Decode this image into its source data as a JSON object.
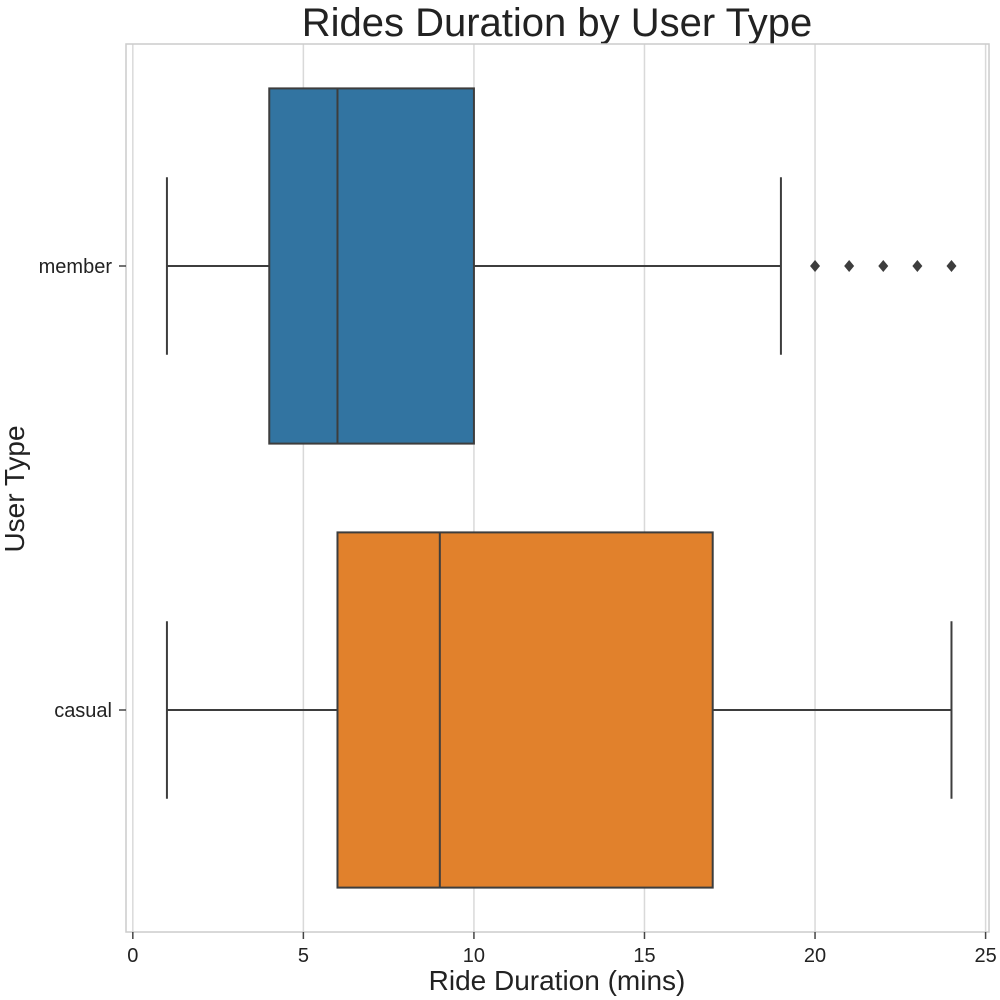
{
  "chart_data": {
    "type": "box",
    "orientation": "horizontal",
    "title": "Rides Duration by User Type",
    "xlabel": "Ride Duration (mins)",
    "ylabel": "User Type",
    "xlim": [
      -0.2,
      25.1
    ],
    "xticks": [
      0,
      5,
      10,
      15,
      20,
      25
    ],
    "grid": "vertical",
    "categories": [
      "member",
      "casual"
    ],
    "boxes": [
      {
        "category": "member",
        "color": "#3274a1",
        "whisker_low": 1,
        "q1": 4,
        "median": 6,
        "q3": 10,
        "whisker_high": 19,
        "outliers": [
          20,
          21,
          22,
          23,
          24
        ]
      },
      {
        "category": "casual",
        "color": "#e1812c",
        "whisker_low": 1,
        "q1": 6,
        "median": 9,
        "q3": 17,
        "whisker_high": 24,
        "outliers": []
      }
    ]
  }
}
